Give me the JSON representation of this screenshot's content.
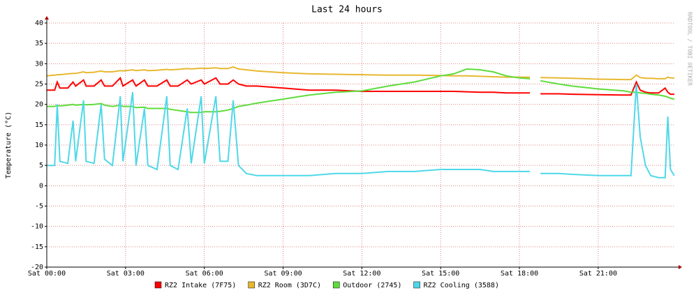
{
  "chart_data": {
    "type": "line",
    "title": "Last 24 hours",
    "y_label": "Temperature (°C)",
    "watermark": "RRDTOOL / TOBI OETIKER",
    "x": [
      0,
      0.3,
      0.4,
      0.5,
      0.8,
      1.0,
      1.1,
      1.4,
      1.5,
      1.8,
      2.07,
      2.2,
      2.5,
      2.8,
      2.9,
      3.27,
      3.4,
      3.72,
      3.85,
      4.2,
      4.57,
      4.7,
      5.0,
      5.35,
      5.5,
      5.88,
      6.0,
      6.44,
      6.6,
      6.9,
      7.1,
      7.3,
      7.6,
      8,
      9,
      10,
      11,
      12,
      13,
      14,
      15,
      15.5,
      16,
      16.5,
      17,
      17.5,
      18,
      18.4,
      18.6,
      18.8,
      19.5,
      20,
      21,
      22,
      22.25,
      22.45,
      22.6,
      22.8,
      23,
      23.3,
      23.55,
      23.65,
      23.75,
      23.9
    ],
    "xlim": [
      0,
      23.9
    ],
    "xticks": [
      {
        "value": 0,
        "label": "Sat 00:00"
      },
      {
        "value": 3,
        "label": "Sat 03:00"
      },
      {
        "value": 6,
        "label": "Sat 06:00"
      },
      {
        "value": 9,
        "label": "Sat 09:00"
      },
      {
        "value": 12,
        "label": "Sat 12:00"
      },
      {
        "value": 15,
        "label": "Sat 15:00"
      },
      {
        "value": 18,
        "label": "Sat 18:00"
      },
      {
        "value": 21,
        "label": "Sat 21:00"
      }
    ],
    "ylim": [
      -20,
      40
    ],
    "yticks": [
      -20,
      -15,
      -10,
      -5,
      0,
      5,
      10,
      15,
      20,
      25,
      30,
      35,
      40
    ],
    "grid": true,
    "series": [
      {
        "name": "RZ2 Intake (7F75)",
        "color": "#ff0000",
        "values": [
          23.5,
          23.5,
          25.5,
          24,
          24,
          25.5,
          24.5,
          26,
          24.5,
          24.5,
          26,
          24.5,
          24.5,
          26.5,
          24.5,
          26,
          24.5,
          26,
          24.5,
          24.5,
          26,
          24.5,
          24.5,
          26,
          25,
          26,
          25,
          26.5,
          25,
          25,
          26,
          25,
          24.5,
          24.5,
          24,
          23.5,
          23.5,
          23.2,
          23.2,
          23.2,
          23.2,
          23.2,
          23.1,
          23,
          23,
          22.8,
          22.8,
          22.8,
          null,
          22.6,
          22.6,
          22.5,
          22.4,
          22.3,
          22.3,
          25.5,
          23.5,
          23,
          22.8,
          22.8,
          24,
          23,
          22.5,
          22.5
        ]
      },
      {
        "name": "RZ2 Room (3D7C)",
        "color": "#e8b830",
        "values": [
          27,
          27.2,
          27.3,
          27.3,
          27.5,
          27.6,
          27.6,
          28,
          27.8,
          27.9,
          28.2,
          28,
          28,
          28.3,
          28.2,
          28.5,
          28.3,
          28.5,
          28.3,
          28.4,
          28.6,
          28.5,
          28.6,
          28.8,
          28.7,
          28.9,
          28.8,
          29,
          28.8,
          28.8,
          29.2,
          28.7,
          28.5,
          28.2,
          27.8,
          27.5,
          27.4,
          27.3,
          27.2,
          27.2,
          27.1,
          27,
          27,
          26.9,
          26.8,
          26.7,
          26.7,
          26.7,
          null,
          26.6,
          26.5,
          26.4,
          26.2,
          26.1,
          26.1,
          27.2,
          26.6,
          26.4,
          26.4,
          26.3,
          26.3,
          26.7,
          26.5,
          26.5
        ]
      },
      {
        "name": "Outdoor (2745)",
        "color": "#5fdc3c",
        "values": [
          19.5,
          19.5,
          19.8,
          19.6,
          19.8,
          20,
          19.8,
          20,
          19.9,
          20,
          20.2,
          19.8,
          19.5,
          19.8,
          19.5,
          19.5,
          19.2,
          19.3,
          19,
          19,
          19,
          18.8,
          18.5,
          18.2,
          18,
          18,
          18.2,
          18.2,
          18.3,
          18.6,
          19,
          19.5,
          19.8,
          20.3,
          21.3,
          22.3,
          23,
          23.3,
          24.5,
          25.5,
          27,
          27.5,
          28.7,
          28.5,
          28,
          27,
          26.5,
          26.3,
          null,
          25.8,
          25,
          24.5,
          23.8,
          23.3,
          23,
          23,
          22.8,
          22.7,
          22.5,
          22.3,
          22,
          21.8,
          21.5,
          21.3
        ]
      },
      {
        "name": "RZ2 Cooling (3588)",
        "color": "#4fd8e8",
        "values": [
          5,
          5,
          20,
          6,
          5.5,
          16,
          6,
          21,
          6,
          5.5,
          20,
          6.5,
          5,
          22,
          6,
          23,
          5,
          19,
          5,
          4,
          22,
          5,
          4,
          19,
          5.5,
          22,
          5.5,
          22,
          6,
          6,
          21,
          5,
          3,
          2.5,
          2.5,
          2.5,
          3,
          3,
          3.5,
          3.5,
          4,
          4,
          4,
          4,
          3.5,
          3.5,
          3.5,
          3.5,
          null,
          3,
          3,
          2.8,
          2.5,
          2.5,
          2.5,
          25,
          12,
          5,
          2.5,
          2,
          2,
          17,
          4,
          2.5
        ]
      }
    ]
  }
}
